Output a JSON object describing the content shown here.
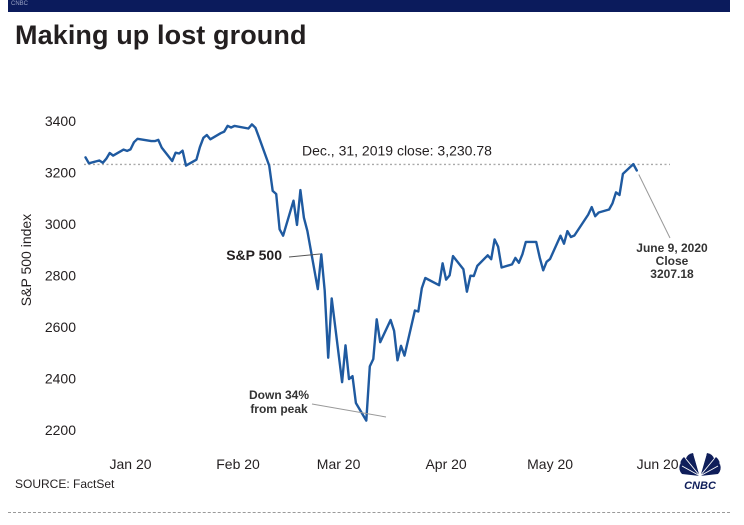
{
  "header": {
    "tag": "CNBC",
    "title": "Making up lost ground"
  },
  "source": "SOURCE: FactSet",
  "logo": {
    "name": "cnbc-peacock-logo",
    "text": "CNBC",
    "colors": [
      "#0f1e5a",
      "#ffffff"
    ]
  },
  "colors": {
    "line": "#1f5aa0",
    "reference": "#a9a9a9",
    "text": "#231f20",
    "background": "#ffffff"
  },
  "chart_data": {
    "type": "line",
    "title": "Making up lost ground",
    "xlabel": "",
    "ylabel": "S&P 500 index",
    "ylim": [
      2150,
      3500
    ],
    "xlim": [
      "2020-01-01",
      "2020-06-18"
    ],
    "yticks": [
      2200,
      2400,
      2600,
      2800,
      3000,
      3200,
      3400
    ],
    "ytick_labels": [
      "2200",
      "2400",
      "2600",
      "2800",
      "3000",
      "3200",
      "3400"
    ],
    "xticks": [
      {
        "date": "2020-01-15",
        "label": "Jan 20"
      },
      {
        "date": "2020-02-15",
        "label": "Feb 20"
      },
      {
        "date": "2020-03-15",
        "label": "Mar 20"
      },
      {
        "date": "2020-04-15",
        "label": "Apr 20"
      },
      {
        "date": "2020-05-15",
        "label": "May 20"
      },
      {
        "date": "2020-06-15",
        "label": "Jun 20"
      }
    ],
    "grid": false,
    "series": [
      {
        "name": "S&P 500",
        "x": [
          "2020-01-02",
          "2020-01-03",
          "2020-01-06",
          "2020-01-07",
          "2020-01-08",
          "2020-01-09",
          "2020-01-10",
          "2020-01-13",
          "2020-01-14",
          "2020-01-15",
          "2020-01-16",
          "2020-01-17",
          "2020-01-21",
          "2020-01-22",
          "2020-01-23",
          "2020-01-24",
          "2020-01-27",
          "2020-01-28",
          "2020-01-29",
          "2020-01-30",
          "2020-01-31",
          "2020-02-03",
          "2020-02-04",
          "2020-02-05",
          "2020-02-06",
          "2020-02-07",
          "2020-02-10",
          "2020-02-11",
          "2020-02-12",
          "2020-02-13",
          "2020-02-14",
          "2020-02-18",
          "2020-02-19",
          "2020-02-20",
          "2020-02-21",
          "2020-02-24",
          "2020-02-25",
          "2020-02-26",
          "2020-02-27",
          "2020-02-28",
          "2020-03-02",
          "2020-03-03",
          "2020-03-04",
          "2020-03-05",
          "2020-03-06",
          "2020-03-09",
          "2020-03-10",
          "2020-03-11",
          "2020-03-12",
          "2020-03-13",
          "2020-03-16",
          "2020-03-17",
          "2020-03-18",
          "2020-03-19",
          "2020-03-20",
          "2020-03-23",
          "2020-03-24",
          "2020-03-25",
          "2020-03-26",
          "2020-03-27",
          "2020-03-30",
          "2020-03-31",
          "2020-04-01",
          "2020-04-02",
          "2020-04-03",
          "2020-04-06",
          "2020-04-07",
          "2020-04-08",
          "2020-04-09",
          "2020-04-13",
          "2020-04-14",
          "2020-04-15",
          "2020-04-16",
          "2020-04-17",
          "2020-04-20",
          "2020-04-21",
          "2020-04-22",
          "2020-04-23",
          "2020-04-24",
          "2020-04-27",
          "2020-04-28",
          "2020-04-29",
          "2020-04-30",
          "2020-05-01",
          "2020-05-04",
          "2020-05-05",
          "2020-05-06",
          "2020-05-07",
          "2020-05-08",
          "2020-05-11",
          "2020-05-12",
          "2020-05-13",
          "2020-05-14",
          "2020-05-15",
          "2020-05-18",
          "2020-05-19",
          "2020-05-20",
          "2020-05-21",
          "2020-05-22",
          "2020-05-26",
          "2020-05-27",
          "2020-05-28",
          "2020-05-29",
          "2020-06-01",
          "2020-06-02",
          "2020-06-03",
          "2020-06-04",
          "2020-06-05",
          "2020-06-08",
          "2020-06-09"
        ],
        "values": [
          3258,
          3235,
          3246,
          3237,
          3253,
          3275,
          3265,
          3288,
          3283,
          3289,
          3317,
          3330,
          3321,
          3321,
          3326,
          3295,
          3244,
          3276,
          3273,
          3284,
          3226,
          3249,
          3298,
          3334,
          3345,
          3328,
          3352,
          3358,
          3380,
          3374,
          3380,
          3370,
          3386,
          3373,
          3338,
          3226,
          3128,
          3116,
          2979,
          2954,
          3090,
          2996,
          3131,
          3024,
          2972,
          2747,
          2882,
          2741,
          2481,
          2711,
          2386,
          2529,
          2398,
          2409,
          2305,
          2237,
          2447,
          2476,
          2630,
          2541,
          2627,
          2585,
          2471,
          2527,
          2489,
          2664,
          2660,
          2750,
          2790,
          2762,
          2847,
          2784,
          2800,
          2875,
          2824,
          2737,
          2799,
          2798,
          2837,
          2878,
          2863,
          2940,
          2912,
          2831,
          2843,
          2868,
          2849,
          2882,
          2930,
          2930,
          2870,
          2820,
          2853,
          2864,
          2954,
          2923,
          2972,
          2949,
          2955,
          3036,
          3065,
          3030,
          3044,
          3056,
          3080,
          3122,
          3112,
          3194,
          3232,
          3207
        ]
      }
    ],
    "reference_line": {
      "value": 3230.78,
      "label": "Dec., 31, 2019 close:  3,230.78"
    },
    "annotations": [
      {
        "text": "S&P 500"
      },
      {
        "text": "Down 34%\nfrom peak",
        "lines": [
          "Down 34%",
          "from peak"
        ]
      },
      {
        "text": "June 9, 2020\nClose\n3207.18",
        "lines": [
          "June 9, 2020",
          "Close",
          "3207.18"
        ]
      }
    ]
  }
}
